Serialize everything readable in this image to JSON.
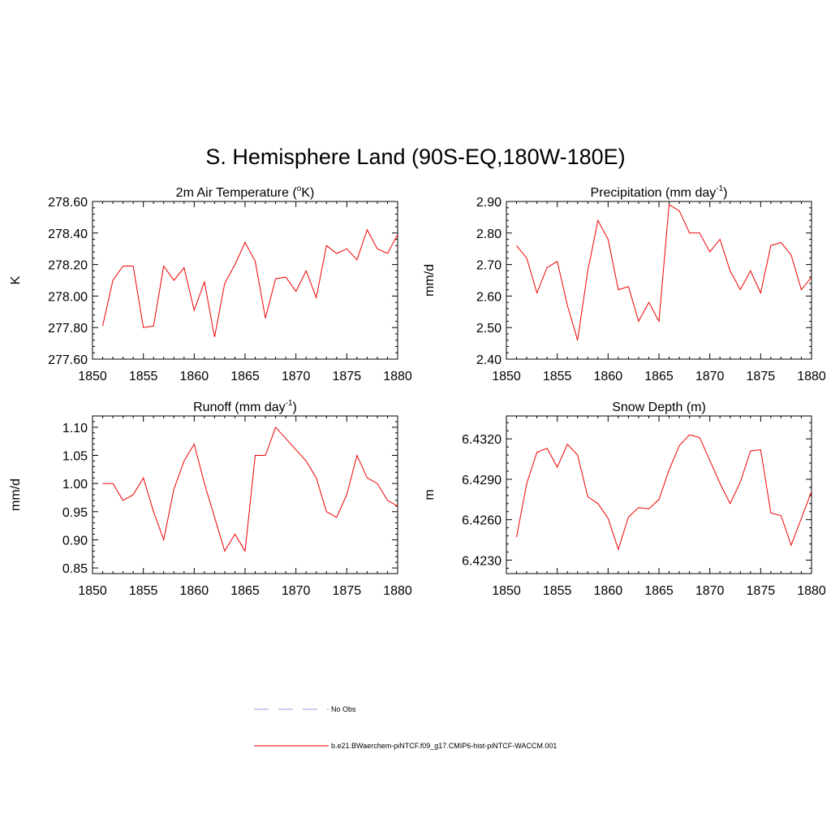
{
  "title": "S. Hemisphere Land (90S-EQ,180W-180E)",
  "legend": {
    "entries": [
      {
        "label": "No Obs",
        "color": "#9999dd",
        "dash": "dashed"
      },
      {
        "label": "b.e21.BWaerchem-piNTCF.f09_g17.CMIP6-hist-piNTCF-WACCM.001",
        "color": "#ee0000",
        "dash": "solid"
      }
    ]
  },
  "chart_data": [
    {
      "type": "line",
      "title": "2m Air Temperature (",
      "title_sup": "o",
      "title_after": "K)",
      "ylabel": "K",
      "xlim": [
        1850,
        1880
      ],
      "ylim": [
        277.6,
        278.6
      ],
      "xticks": [
        1850,
        1855,
        1860,
        1865,
        1870,
        1875,
        1880
      ],
      "yticks": [
        277.6,
        277.8,
        278.0,
        278.2,
        278.4,
        278.6
      ],
      "ytick_labels": [
        "277.60",
        "277.80",
        "278.00",
        "278.20",
        "278.40",
        "278.60"
      ],
      "series": [
        {
          "color": "#ee0000",
          "x": [
            1851,
            1852,
            1853,
            1854,
            1855,
            1856,
            1857,
            1858,
            1859,
            1860,
            1861,
            1862,
            1863,
            1864,
            1865,
            1866,
            1867,
            1868,
            1869,
            1870,
            1871,
            1872,
            1873,
            1874,
            1875,
            1876,
            1877,
            1878,
            1879,
            1880
          ],
          "values": [
            277.81,
            278.1,
            278.19,
            278.19,
            277.8,
            277.81,
            278.19,
            278.1,
            278.18,
            277.91,
            278.09,
            277.74,
            278.08,
            278.2,
            278.34,
            278.22,
            277.86,
            278.11,
            278.12,
            278.03,
            278.16,
            277.99,
            278.32,
            278.27,
            278.3,
            278.23,
            278.42,
            278.3,
            278.27,
            278.39
          ]
        }
      ]
    },
    {
      "type": "line",
      "title": "Precipitation (mm day",
      "title_sup": "-1",
      "title_after": ")",
      "ylabel": "mm/d",
      "xlim": [
        1850,
        1880
      ],
      "ylim": [
        2.4,
        2.9
      ],
      "xticks": [
        1850,
        1855,
        1860,
        1865,
        1870,
        1875,
        1880
      ],
      "yticks": [
        2.4,
        2.5,
        2.6,
        2.7,
        2.8,
        2.9
      ],
      "ytick_labels": [
        "2.40",
        "2.50",
        "2.60",
        "2.70",
        "2.80",
        "2.90"
      ],
      "series": [
        {
          "color": "#ee0000",
          "x": [
            1851,
            1852,
            1853,
            1854,
            1855,
            1856,
            1857,
            1858,
            1859,
            1860,
            1861,
            1862,
            1863,
            1864,
            1865,
            1866,
            1867,
            1868,
            1869,
            1870,
            1871,
            1872,
            1873,
            1874,
            1875,
            1876,
            1877,
            1878,
            1879,
            1880
          ],
          "values": [
            2.76,
            2.72,
            2.61,
            2.69,
            2.71,
            2.57,
            2.46,
            2.68,
            2.84,
            2.78,
            2.62,
            2.63,
            2.52,
            2.58,
            2.52,
            2.89,
            2.87,
            2.8,
            2.8,
            2.74,
            2.78,
            2.68,
            2.62,
            2.68,
            2.61,
            2.76,
            2.77,
            2.73,
            2.62,
            2.66
          ]
        }
      ]
    },
    {
      "type": "line",
      "title": "Runoff (mm day",
      "title_sup": "-1",
      "title_after": ")",
      "ylabel": "mm/d",
      "xlim": [
        1850,
        1880
      ],
      "ylim": [
        0.84,
        1.12
      ],
      "xticks": [
        1850,
        1855,
        1860,
        1865,
        1870,
        1875,
        1880
      ],
      "yticks": [
        0.85,
        0.9,
        0.95,
        1.0,
        1.05,
        1.1
      ],
      "ytick_labels": [
        "0.85",
        "0.90",
        "0.95",
        "1.00",
        "1.05",
        "1.10"
      ],
      "series": [
        {
          "color": "#ee0000",
          "x": [
            1851,
            1852,
            1853,
            1854,
            1855,
            1856,
            1857,
            1858,
            1859,
            1860,
            1861,
            1862,
            1863,
            1864,
            1865,
            1866,
            1867,
            1868,
            1869,
            1870,
            1871,
            1872,
            1873,
            1874,
            1875,
            1876,
            1877,
            1878,
            1879,
            1880
          ],
          "values": [
            1.0,
            1.0,
            0.97,
            0.98,
            1.01,
            0.95,
            0.9,
            0.99,
            1.04,
            1.07,
            1.0,
            0.94,
            0.88,
            0.91,
            0.88,
            1.05,
            1.05,
            1.1,
            1.08,
            1.06,
            1.04,
            1.01,
            0.95,
            0.94,
            0.98,
            1.05,
            1.01,
            1.0,
            0.97,
            0.96
          ]
        }
      ]
    },
    {
      "type": "line",
      "title": "Snow Depth (m)",
      "title_sup": "",
      "title_after": "",
      "ylabel": "m",
      "xlim": [
        1850,
        1880
      ],
      "ylim": [
        6.422,
        6.4337
      ],
      "xticks": [
        1850,
        1855,
        1860,
        1865,
        1870,
        1875,
        1880
      ],
      "yticks": [
        6.423,
        6.426,
        6.429,
        6.432
      ],
      "ytick_labels": [
        "6.4230",
        "6.4260",
        "6.4290",
        "6.4320"
      ],
      "series": [
        {
          "color": "#ee0000",
          "x": [
            1851,
            1852,
            1853,
            1854,
            1855,
            1856,
            1857,
            1858,
            1859,
            1860,
            1861,
            1862,
            1863,
            1864,
            1865,
            1866,
            1867,
            1868,
            1869,
            1870,
            1871,
            1872,
            1873,
            1874,
            1875,
            1876,
            1877,
            1878,
            1879,
            1880
          ],
          "values": [
            6.4247,
            6.4287,
            6.431,
            6.4313,
            6.4299,
            6.4316,
            6.4308,
            6.4277,
            6.4272,
            6.4261,
            6.4238,
            6.4262,
            6.4269,
            6.4268,
            6.4275,
            6.4297,
            6.4315,
            6.4323,
            6.4321,
            6.4304,
            6.4287,
            6.4272,
            6.4288,
            6.4311,
            6.4312,
            6.4265,
            6.4263,
            6.4241,
            6.4261,
            6.4281
          ]
        }
      ]
    }
  ]
}
